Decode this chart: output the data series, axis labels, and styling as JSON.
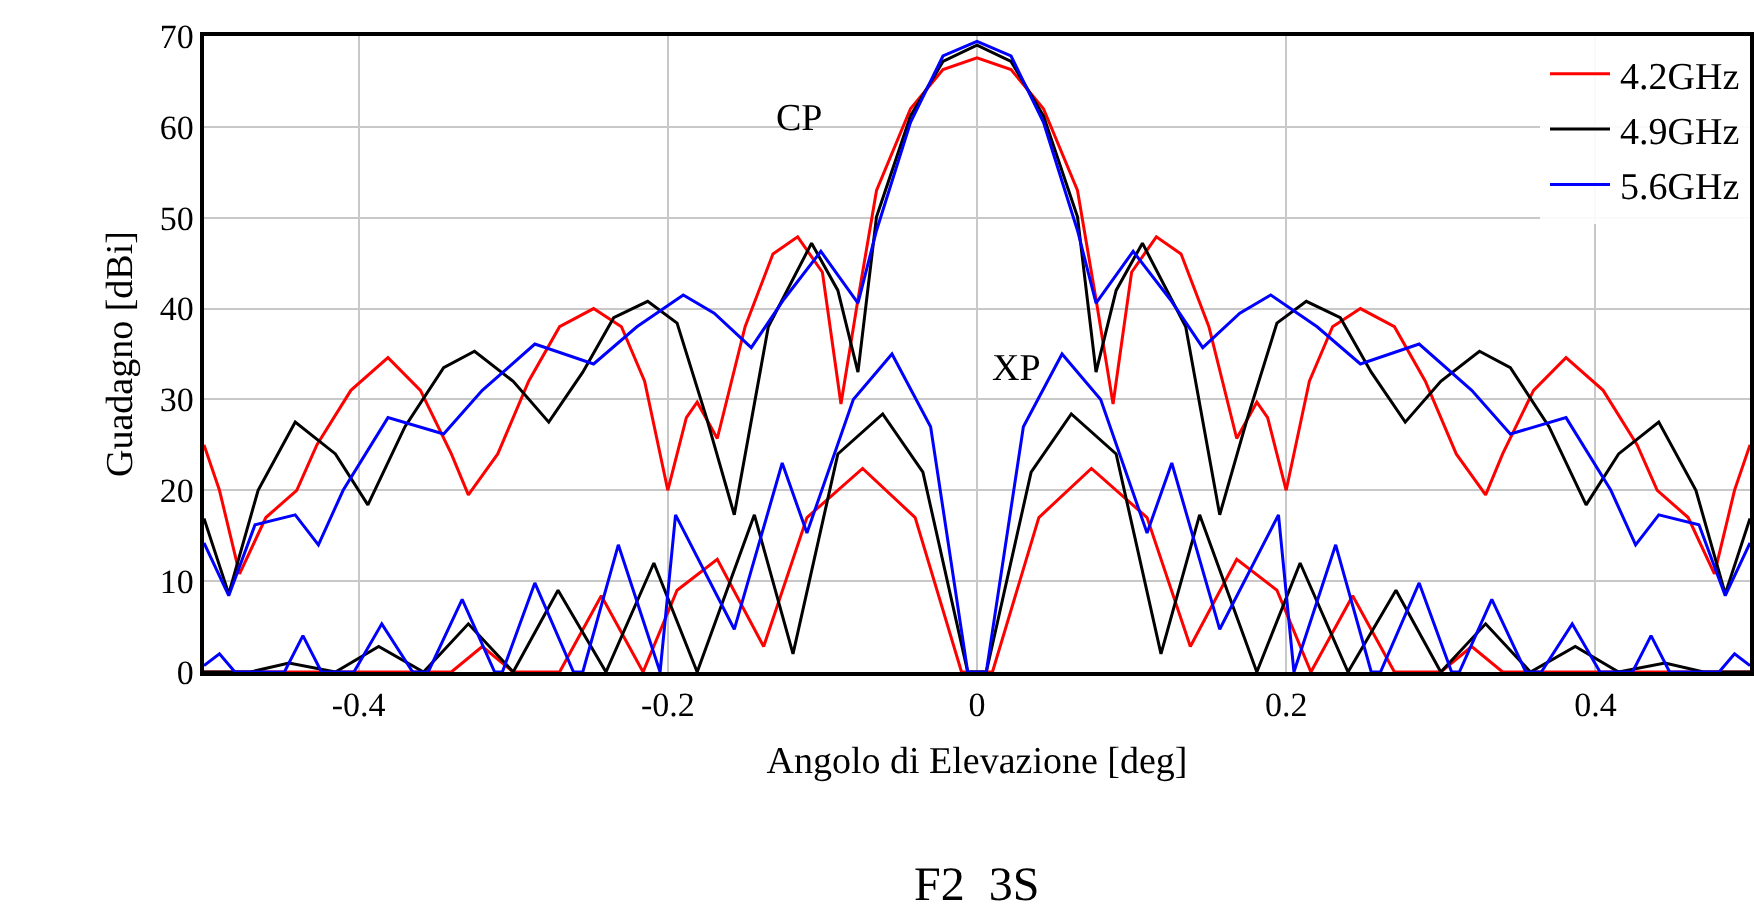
{
  "chart_data": {
    "type": "line",
    "xlabel": "Angolo di Elevazione [deg]",
    "ylabel": "Guadagno [dBi]",
    "xlim": [
      -0.5,
      0.5
    ],
    "xticks": [
      -0.4,
      -0.2,
      0,
      0.2,
      0.4
    ],
    "ylim": [
      0,
      70
    ],
    "yticks": [
      0,
      10,
      20,
      30,
      40,
      50,
      60,
      70
    ],
    "grid": true,
    "legend": "top right",
    "line_style": "solid",
    "annotations": [
      "CP",
      "XP",
      "F2  3S"
    ],
    "series": [
      {
        "name": "4.2GHz",
        "color": "#ff0000",
        "x": [
          -0.5,
          -0.49,
          -0.477,
          -0.46,
          -0.44,
          -0.427,
          -0.405,
          -0.381,
          -0.36,
          -0.34,
          -0.329,
          -0.31,
          -0.29,
          -0.27,
          -0.248,
          -0.23,
          -0.215,
          -0.2,
          -0.188,
          -0.181,
          -0.168,
          -0.15,
          -0.132,
          -0.116,
          -0.1,
          -0.088,
          -0.077,
          -0.065,
          -0.043,
          -0.022,
          0,
          0.022,
          0.043,
          0.065,
          0.077,
          0.088,
          0.1,
          0.116,
          0.132,
          0.15,
          0.168,
          0.181,
          0.188,
          0.2,
          0.215,
          0.23,
          0.248,
          0.27,
          0.29,
          0.31,
          0.329,
          0.34,
          0.36,
          0.381,
          0.405,
          0.427,
          0.44,
          0.46,
          0.477,
          0.49,
          0.5
        ],
        "values": [
          25,
          20,
          10.8,
          17,
          20,
          25,
          31,
          34.6,
          31,
          24,
          19.5,
          24,
          32,
          38,
          40,
          38,
          32,
          20,
          28,
          29.7,
          25.7,
          38,
          46,
          47.9,
          44,
          29.5,
          41,
          53,
          62,
          66.3,
          67.6,
          66.3,
          62,
          53,
          41,
          29.5,
          44,
          47.9,
          46,
          38,
          25.7,
          29.7,
          28,
          20,
          32,
          38,
          40,
          38,
          32,
          24,
          19.5,
          24,
          31,
          34.6,
          31,
          25,
          20,
          17,
          10.8,
          20,
          25
        ]
      },
      {
        "name": "4.9GHz",
        "color": "#000000",
        "x": [
          -0.5,
          -0.484,
          -0.465,
          -0.441,
          -0.415,
          -0.394,
          -0.37,
          -0.345,
          -0.325,
          -0.3,
          -0.277,
          -0.255,
          -0.235,
          -0.213,
          -0.194,
          -0.175,
          -0.157,
          -0.135,
          -0.107,
          -0.09,
          -0.077,
          -0.065,
          -0.043,
          -0.022,
          0,
          0.022,
          0.043,
          0.065,
          0.077,
          0.09,
          0.107,
          0.135,
          0.157,
          0.175,
          0.194,
          0.213,
          0.235,
          0.255,
          0.277,
          0.3,
          0.325,
          0.345,
          0.37,
          0.394,
          0.415,
          0.441,
          0.465,
          0.484,
          0.5
        ],
        "values": [
          16.9,
          8.6,
          20,
          27.5,
          24,
          18.4,
          27,
          33.5,
          35.3,
          32,
          27.5,
          33,
          39,
          40.8,
          38.4,
          28,
          17.3,
          38,
          47.2,
          42,
          33,
          50.1,
          61.2,
          67.2,
          69,
          67.2,
          61.2,
          50.1,
          33,
          42,
          47.2,
          38,
          17.3,
          28,
          38.4,
          40.8,
          39,
          33,
          27.5,
          32,
          35.3,
          33.5,
          27,
          18.4,
          24,
          27.5,
          20,
          8.6,
          16.9
        ]
      },
      {
        "name": "5.6GHz",
        "color": "#0000ff",
        "x": [
          -0.5,
          -0.484,
          -0.467,
          -0.441,
          -0.426,
          -0.41,
          -0.381,
          -0.345,
          -0.32,
          -0.286,
          -0.248,
          -0.22,
          -0.19,
          -0.17,
          -0.146,
          -0.125,
          -0.101,
          -0.077,
          -0.065,
          -0.043,
          -0.022,
          0,
          0.022,
          0.043,
          0.065,
          0.077,
          0.101,
          0.125,
          0.146,
          0.17,
          0.19,
          0.22,
          0.248,
          0.286,
          0.32,
          0.345,
          0.381,
          0.41,
          0.426,
          0.441,
          0.467,
          0.484,
          0.5
        ],
        "values": [
          14.2,
          8.4,
          16.2,
          17.3,
          14,
          20,
          28,
          26.2,
          31,
          36.1,
          33.9,
          38,
          41.5,
          39.5,
          35.7,
          41,
          46.3,
          40.6,
          48.6,
          60.5,
          67.8,
          69.4,
          67.8,
          60.5,
          48.6,
          40.6,
          46.3,
          41,
          35.7,
          39.5,
          41.5,
          38,
          33.9,
          36.1,
          31,
          26.2,
          28,
          20,
          14,
          17.3,
          16.2,
          8.4,
          14.2
        ]
      },
      {
        "color": "#ff0000",
        "x": [
          -0.5,
          -0.34,
          -0.32,
          -0.3,
          -0.27,
          -0.243,
          -0.216,
          -0.194,
          -0.168,
          -0.138,
          -0.11,
          -0.074,
          -0.04,
          -0.01,
          0,
          0.01,
          0.04,
          0.074,
          0.11,
          0.138,
          0.168,
          0.194,
          0.216,
          0.243,
          0.27,
          0.3,
          0.32,
          0.34,
          0.5
        ],
        "values": [
          0,
          0,
          2.8,
          0,
          0,
          8.4,
          0,
          9,
          12.4,
          2.8,
          17,
          22.4,
          17,
          0,
          0,
          0,
          17,
          22.4,
          17,
          2.8,
          12.4,
          9,
          0,
          8.4,
          0,
          0,
          2.8,
          0,
          0
        ]
      },
      {
        "color": "#000000",
        "x": [
          -0.5,
          -0.47,
          -0.445,
          -0.415,
          -0.387,
          -0.358,
          -0.329,
          -0.3,
          -0.271,
          -0.24,
          -0.209,
          -0.181,
          -0.144,
          -0.119,
          -0.09,
          -0.061,
          -0.035,
          -0.006,
          0,
          0.006,
          0.035,
          0.061,
          0.09,
          0.119,
          0.144,
          0.181,
          0.209,
          0.24,
          0.271,
          0.3,
          0.329,
          0.358,
          0.387,
          0.415,
          0.445,
          0.47,
          0.5
        ],
        "values": [
          0,
          0,
          1,
          0,
          2.8,
          0,
          5.3,
          0,
          9,
          0,
          12,
          0,
          17.3,
          2,
          24,
          28.4,
          22,
          0,
          0,
          0,
          22,
          28.4,
          24,
          2,
          17.3,
          0,
          12,
          0,
          9,
          0,
          5.3,
          0,
          2.8,
          0,
          1,
          0,
          0
        ]
      },
      {
        "color": "#0000ff",
        "x": [
          -0.5,
          -0.49,
          -0.48,
          -0.448,
          -0.436,
          -0.424,
          -0.403,
          -0.385,
          -0.365,
          -0.355,
          -0.333,
          -0.312,
          -0.307,
          -0.286,
          -0.261,
          -0.255,
          -0.232,
          -0.205,
          -0.195,
          -0.157,
          -0.126,
          -0.11,
          -0.08,
          -0.055,
          -0.03,
          -0.006,
          0,
          0.006,
          0.03,
          0.055,
          0.08,
          0.11,
          0.126,
          0.157,
          0.195,
          0.205,
          0.232,
          0.255,
          0.261,
          0.286,
          0.307,
          0.312,
          0.333,
          0.355,
          0.365,
          0.385,
          0.403,
          0.424,
          0.436,
          0.448,
          0.48,
          0.49,
          0.5
        ],
        "values": [
          0.7,
          2,
          0,
          0,
          4,
          0,
          0,
          5.3,
          0,
          0,
          8,
          0,
          0,
          9.8,
          0,
          0,
          14,
          0,
          17.3,
          4.7,
          23,
          15.3,
          30,
          35,
          27,
          0,
          0,
          0,
          27,
          35,
          30,
          15.3,
          23,
          4.7,
          17.3,
          0,
          14,
          0,
          0,
          9.8,
          0,
          0,
          8,
          0,
          0,
          5.3,
          0,
          0,
          4,
          0,
          0,
          2,
          0.7
        ]
      }
    ]
  }
}
